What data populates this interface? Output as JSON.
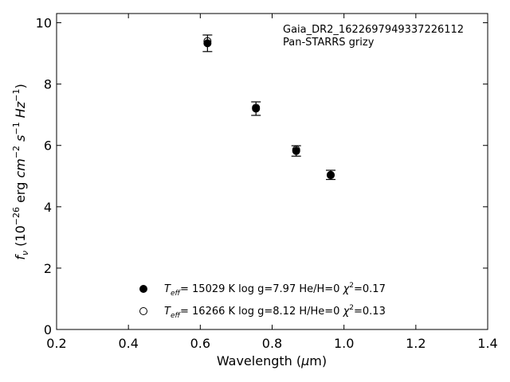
{
  "chart_data": {
    "type": "scatter",
    "xlabel_parts": [
      "Wavelength (",
      "μ",
      "m)"
    ],
    "ylabel_parts": [
      "f",
      "ν",
      " (10",
      "−26",
      " erg ",
      "cm",
      "−2",
      " ",
      "s",
      "−1",
      " ",
      "Hz",
      "−1",
      ")"
    ],
    "xlim": [
      0.2,
      1.4
    ],
    "ylim": [
      0,
      10.3
    ],
    "xticks": [
      0.2,
      0.4,
      0.6,
      0.8,
      1.0,
      1.2,
      1.4
    ],
    "xtick_labels": [
      "0.2",
      "0.4",
      "0.6",
      "0.8",
      "1.0",
      "1.2",
      "1.4"
    ],
    "yticks": [
      0,
      2,
      4,
      6,
      8,
      10
    ],
    "ytick_labels": [
      "0",
      "2",
      "4",
      "6",
      "8",
      "10"
    ],
    "annotations": [
      "Gaia_DR2_1622697949337226112",
      "Pan-STARRS grizy"
    ],
    "series": [
      {
        "marker": "open-circle",
        "points": [
          {
            "x": 0.62,
            "y": 9.4
          },
          {
            "x": 0.755,
            "y": 7.23
          },
          {
            "x": 0.867,
            "y": 5.86
          },
          {
            "x": 0.963,
            "y": 5.03
          }
        ]
      },
      {
        "marker": "filled-circle",
        "points": [
          {
            "x": 0.62,
            "y": 9.33,
            "err": 0.27
          },
          {
            "x": 0.755,
            "y": 7.2,
            "err": 0.22
          },
          {
            "x": 0.867,
            "y": 5.82,
            "err": 0.17
          },
          {
            "x": 0.963,
            "y": 5.04,
            "err": 0.15
          }
        ]
      }
    ],
    "legend": {
      "placement": "lower-center",
      "entries": [
        {
          "marker": "filled-circle",
          "parts": [
            "T",
            "eff",
            "= 15029 K  log g=7.97  He/H=0  ",
            "χ",
            "2",
            "=0.17"
          ]
        },
        {
          "marker": "open-circle",
          "parts": [
            "T",
            "eff",
            "= 16266 K  log g=8.12  H/He=0  ",
            "χ",
            "2",
            "=0.13"
          ]
        }
      ]
    },
    "grid": false
  }
}
